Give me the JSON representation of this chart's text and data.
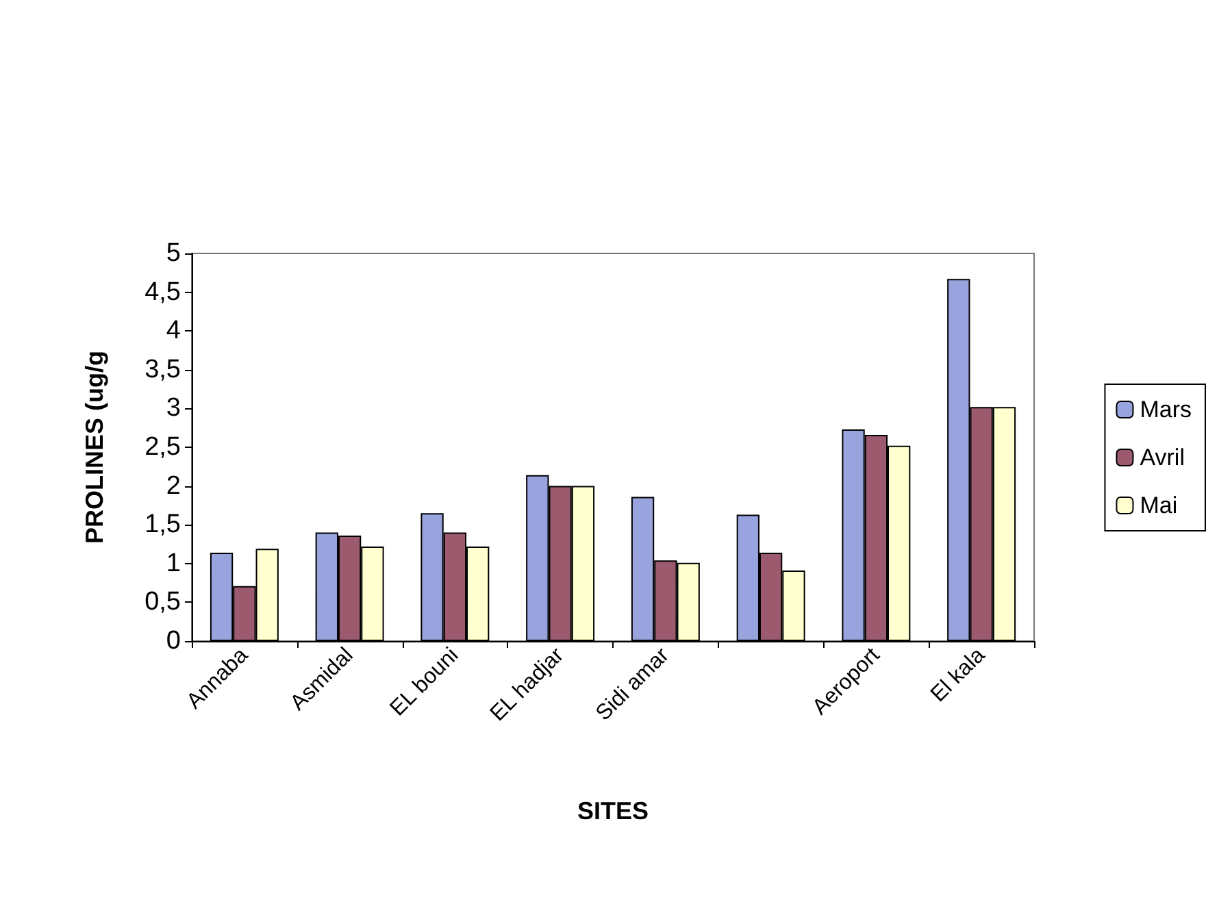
{
  "chart_data": {
    "type": "bar",
    "xlabel": "SITES",
    "ylabel": "PROLINES (ug/g",
    "categories": [
      "Annaba",
      "Asmidal",
      "EL bouni",
      "EL hadjar",
      "Sidi amar",
      null,
      "Aeroport",
      "El kala"
    ],
    "series": [
      {
        "name": "Mars",
        "color": "#99a3dd",
        "values": [
          1.14,
          1.4,
          1.65,
          2.14,
          1.86,
          1.63,
          2.73,
          4.67
        ]
      },
      {
        "name": "Avril",
        "color": "#9b5a6e",
        "values": [
          0.71,
          1.36,
          1.4,
          2.0,
          1.04,
          1.14,
          2.66,
          3.02
        ]
      },
      {
        "name": "Mai",
        "color": "#ffffd0",
        "values": [
          1.19,
          1.22,
          1.22,
          2.0,
          1.01,
          0.91,
          2.52,
          3.02
        ]
      }
    ],
    "ylim": [
      0,
      5
    ],
    "yticks": [
      0,
      {
        "value": 0.5,
        "label": "0,5"
      },
      1,
      {
        "value": 1.5,
        "label": "1,5"
      },
      2,
      {
        "value": 2.5,
        "label": "2,5"
      },
      3,
      {
        "value": 3.5,
        "label": "3,5"
      },
      4,
      {
        "value": 4.5,
        "label": "4,5"
      },
      5
    ],
    "grid": false,
    "legend": "right"
  }
}
